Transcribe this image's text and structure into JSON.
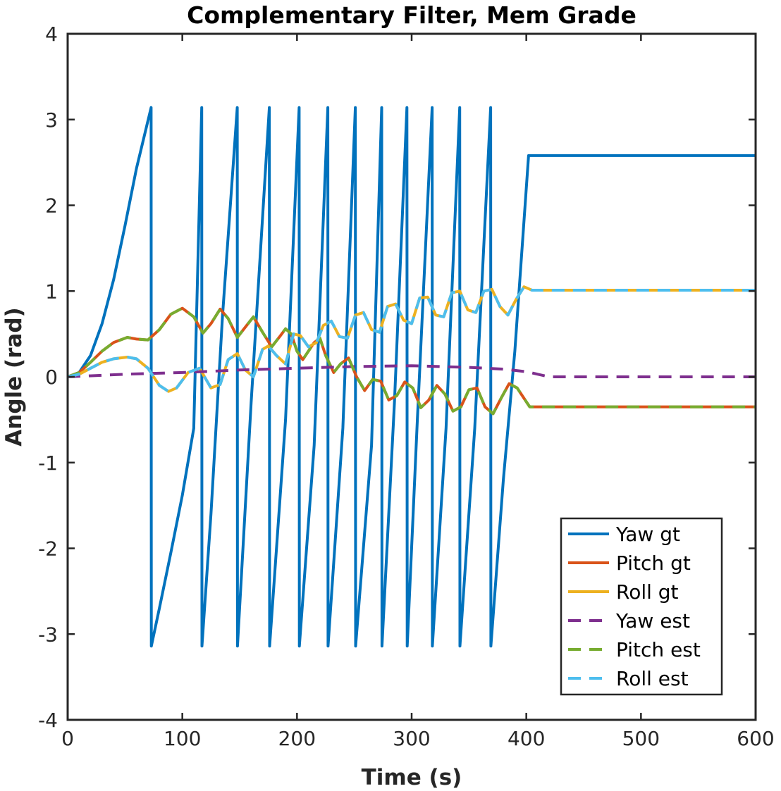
{
  "chart_data": {
    "type": "line",
    "title": "Complementary Filter, Mem Grade",
    "xlabel": "Time (s)",
    "ylabel": "Angle (rad)",
    "xlim": [
      0,
      600
    ],
    "ylim": [
      -4,
      4
    ],
    "xticks": [
      0,
      100,
      200,
      300,
      400,
      500,
      600
    ],
    "yticks": [
      -4,
      -3,
      -2,
      -1,
      0,
      1,
      2,
      3,
      4
    ],
    "xtick_labels": [
      "0",
      "100",
      "200",
      "300",
      "400",
      "500",
      "600"
    ],
    "ytick_labels": [
      "-4",
      "-3",
      "-2",
      "-1",
      "0",
      "1",
      "2",
      "3",
      "4"
    ],
    "grid": false,
    "box": true,
    "legend_position": "bottom-right",
    "series": [
      {
        "name": "Yaw gt",
        "color": "#0072BD",
        "style": "solid",
        "x": [
          0,
          10,
          20,
          30,
          40,
          50,
          60,
          72.8,
          73,
          80,
          90,
          100,
          110,
          116.9,
          117.1,
          125,
          135,
          147.9,
          148.1,
          160,
          175.9,
          176.1,
          190,
          201.9,
          202.1,
          215,
          226.9,
          227.1,
          240,
          250.9,
          251.1,
          265,
          273.9,
          274.1,
          285,
          295.9,
          296.1,
          305,
          317.9,
          318.1,
          330,
          341.9,
          342.1,
          355,
          368.9,
          369.1,
          380,
          390,
          402,
          600
        ],
        "y": [
          0,
          0.05,
          0.25,
          0.62,
          1.13,
          1.76,
          2.43,
          3.14,
          -3.14,
          -2.7,
          -2.05,
          -1.38,
          -0.6,
          3.14,
          -3.14,
          -1.6,
          0.7,
          3.14,
          -3.14,
          -0.3,
          3.14,
          -3.14,
          -0.5,
          3.14,
          -3.14,
          -0.8,
          3.14,
          -3.14,
          -0.6,
          3.14,
          -3.14,
          -0.8,
          3.14,
          -3.14,
          -0.3,
          3.14,
          -3.14,
          -0.5,
          3.14,
          -3.14,
          -0.6,
          3.14,
          -3.14,
          -0.6,
          3.14,
          -3.14,
          -1.2,
          0.3,
          2.58,
          2.58
        ]
      },
      {
        "name": "Pitch gt",
        "color": "#D95319",
        "style": "solid",
        "x": [
          0,
          10,
          20,
          30,
          40,
          52,
          60,
          70,
          80,
          90,
          100,
          110,
          118,
          125,
          133,
          140,
          148,
          155,
          162,
          170,
          178,
          185,
          190,
          195,
          200,
          205,
          210,
          215,
          220,
          225,
          232,
          238,
          245,
          252,
          259,
          266,
          273,
          280,
          287,
          294,
          301,
          308,
          315,
          322,
          329,
          336,
          343,
          350,
          357,
          364,
          371,
          378,
          385,
          392,
          399,
          403,
          410,
          450,
          500,
          550,
          600
        ],
        "y": [
          0,
          0.05,
          0.17,
          0.3,
          0.4,
          0.46,
          0.44,
          0.43,
          0.55,
          0.73,
          0.8,
          0.7,
          0.51,
          0.62,
          0.79,
          0.68,
          0.46,
          0.58,
          0.7,
          0.52,
          0.35,
          0.47,
          0.56,
          0.5,
          0.3,
          0.2,
          0.3,
          0.4,
          0.45,
          0.25,
          0.05,
          0.15,
          0.22,
          0.0,
          -0.16,
          -0.03,
          -0.05,
          -0.27,
          -0.22,
          -0.06,
          -0.13,
          -0.36,
          -0.27,
          -0.1,
          -0.2,
          -0.4,
          -0.35,
          -0.15,
          -0.13,
          -0.35,
          -0.43,
          -0.25,
          -0.08,
          -0.13,
          -0.27,
          -0.35,
          -0.35,
          -0.35,
          -0.35,
          -0.35,
          -0.35
        ]
      },
      {
        "name": "Roll gt",
        "color": "#EDB120",
        "style": "solid",
        "x": [
          0,
          10,
          20,
          30,
          40,
          52,
          60,
          70,
          80,
          88,
          95,
          105,
          115,
          125,
          133,
          140,
          148,
          155,
          162,
          170,
          175,
          182,
          190,
          197,
          203,
          210,
          217,
          223,
          230,
          237,
          244,
          251,
          258,
          265,
          272,
          279,
          286,
          293,
          300,
          307,
          314,
          321,
          328,
          335,
          342,
          349,
          356,
          363,
          370,
          377,
          384,
          391,
          398,
          405,
          450,
          500,
          550,
          600
        ],
        "y": [
          0,
          0.03,
          0.1,
          0.17,
          0.21,
          0.23,
          0.21,
          0.1,
          -0.1,
          -0.17,
          -0.13,
          0.05,
          0.1,
          -0.13,
          -0.09,
          0.2,
          0.27,
          0.08,
          0.0,
          0.32,
          0.36,
          0.25,
          0.15,
          0.5,
          0.48,
          0.35,
          0.4,
          0.6,
          0.65,
          0.47,
          0.45,
          0.72,
          0.75,
          0.55,
          0.52,
          0.82,
          0.85,
          0.66,
          0.62,
          0.92,
          0.93,
          0.72,
          0.7,
          0.98,
          1.0,
          0.78,
          0.75,
          1.0,
          1.02,
          0.82,
          0.72,
          0.9,
          1.05,
          1.01,
          1.01,
          1.01,
          1.01,
          1.01
        ]
      },
      {
        "name": "Yaw est",
        "color": "#7E2F8E",
        "style": "dashed",
        "x": [
          0,
          50,
          100,
          150,
          200,
          250,
          300,
          350,
          380,
          400,
          420,
          500,
          600
        ],
        "y": [
          0,
          0.03,
          0.05,
          0.08,
          0.1,
          0.12,
          0.13,
          0.11,
          0.09,
          0.06,
          0.0,
          0.0,
          0.0
        ]
      },
      {
        "name": "Pitch est",
        "color": "#77AC30",
        "style": "dashed",
        "x": [
          0,
          10,
          20,
          30,
          40,
          52,
          60,
          70,
          80,
          90,
          100,
          110,
          118,
          125,
          133,
          140,
          148,
          155,
          162,
          170,
          178,
          185,
          190,
          195,
          200,
          205,
          210,
          215,
          220,
          225,
          232,
          238,
          245,
          252,
          259,
          266,
          273,
          280,
          287,
          294,
          301,
          308,
          315,
          322,
          329,
          336,
          343,
          350,
          357,
          364,
          371,
          378,
          385,
          392,
          399,
          403,
          410,
          450,
          500,
          550,
          600
        ],
        "y": [
          0,
          0.05,
          0.17,
          0.3,
          0.4,
          0.46,
          0.44,
          0.43,
          0.55,
          0.73,
          0.8,
          0.7,
          0.51,
          0.62,
          0.79,
          0.68,
          0.46,
          0.58,
          0.7,
          0.52,
          0.35,
          0.47,
          0.56,
          0.5,
          0.3,
          0.2,
          0.3,
          0.4,
          0.45,
          0.25,
          0.05,
          0.15,
          0.22,
          0.0,
          -0.16,
          -0.03,
          -0.05,
          -0.27,
          -0.22,
          -0.06,
          -0.13,
          -0.36,
          -0.27,
          -0.1,
          -0.2,
          -0.4,
          -0.35,
          -0.15,
          -0.13,
          -0.35,
          -0.43,
          -0.25,
          -0.08,
          -0.13,
          -0.27,
          -0.35,
          -0.35,
          -0.35,
          -0.35,
          -0.35,
          -0.35
        ]
      },
      {
        "name": "Roll est",
        "color": "#4DBEEE",
        "style": "dashed",
        "x": [
          0,
          10,
          20,
          30,
          40,
          52,
          60,
          70,
          80,
          88,
          95,
          105,
          115,
          125,
          133,
          140,
          148,
          155,
          162,
          170,
          175,
          182,
          190,
          197,
          203,
          210,
          217,
          223,
          230,
          237,
          244,
          251,
          258,
          265,
          272,
          279,
          286,
          293,
          300,
          307,
          314,
          321,
          328,
          335,
          342,
          349,
          356,
          363,
          370,
          377,
          384,
          391,
          398,
          405,
          450,
          500,
          550,
          600
        ],
        "y": [
          0,
          0.03,
          0.1,
          0.17,
          0.21,
          0.23,
          0.21,
          0.1,
          -0.1,
          -0.17,
          -0.13,
          0.05,
          0.1,
          -0.13,
          -0.09,
          0.2,
          0.27,
          0.08,
          0.0,
          0.32,
          0.36,
          0.25,
          0.15,
          0.5,
          0.48,
          0.35,
          0.4,
          0.6,
          0.65,
          0.47,
          0.45,
          0.72,
          0.75,
          0.55,
          0.52,
          0.82,
          0.85,
          0.66,
          0.62,
          0.92,
          0.93,
          0.72,
          0.7,
          0.98,
          1.0,
          0.78,
          0.75,
          1.0,
          1.02,
          0.82,
          0.72,
          0.9,
          1.05,
          1.01,
          1.01,
          1.01,
          1.01,
          1.01
        ]
      }
    ]
  }
}
